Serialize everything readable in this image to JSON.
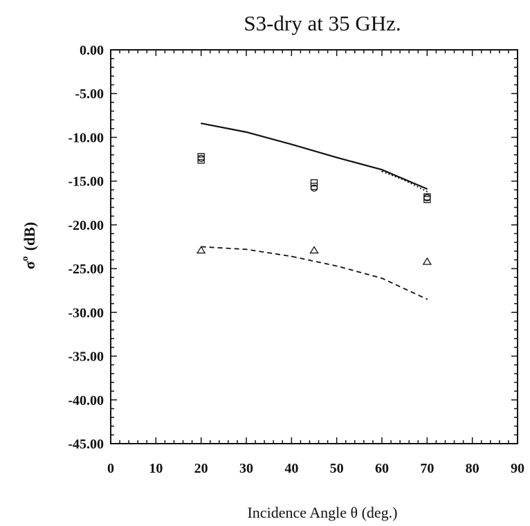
{
  "chart_data": {
    "type": "line",
    "title": "S3-dry at 35 GHz.",
    "xlabel": "Incidence Angle  θ   (deg.)",
    "ylabel": {
      "symbol": "σ",
      "superscript": "o",
      "units": "(dB)"
    },
    "xlim": [
      0,
      90
    ],
    "ylim": [
      -45,
      0
    ],
    "xticks": [
      "0",
      "10",
      "20",
      "30",
      "40",
      "50",
      "60",
      "70",
      "80",
      "90"
    ],
    "yticks": [
      "0.00",
      "-5.00",
      "-10.00",
      "-15.00",
      "-20.00",
      "-25.00",
      "-30.00",
      "-35.00",
      "-40.00",
      "-45.00"
    ],
    "grid": false,
    "series": [
      {
        "style": "solid",
        "x": [
          20,
          30,
          40,
          50,
          60,
          70
        ],
        "y": [
          -8.4,
          -9.4,
          -10.8,
          -12.3,
          -13.7,
          -15.9
        ]
      },
      {
        "style": "dotted",
        "x": [
          60,
          65,
          70
        ],
        "y": [
          -13.9,
          -14.9,
          -16.2
        ]
      },
      {
        "style": "dashed",
        "x": [
          20,
          30,
          40,
          50,
          60,
          70
        ],
        "y": [
          -22.5,
          -22.8,
          -23.6,
          -24.7,
          -26.1,
          -28.5
        ]
      },
      {
        "style": "square-markers",
        "x": [
          20,
          20,
          45,
          45,
          70,
          70
        ],
        "y": [
          -12.2,
          -12.6,
          -15.2,
          -15.6,
          -16.8,
          -17.1
        ]
      },
      {
        "style": "circle-markers",
        "x": [
          20,
          45,
          70
        ],
        "y": [
          -12.4,
          -15.8,
          -16.9
        ]
      },
      {
        "style": "triangle-markers",
        "x": [
          20,
          45,
          70
        ],
        "y": [
          -22.9,
          -22.9,
          -24.2
        ]
      }
    ]
  }
}
